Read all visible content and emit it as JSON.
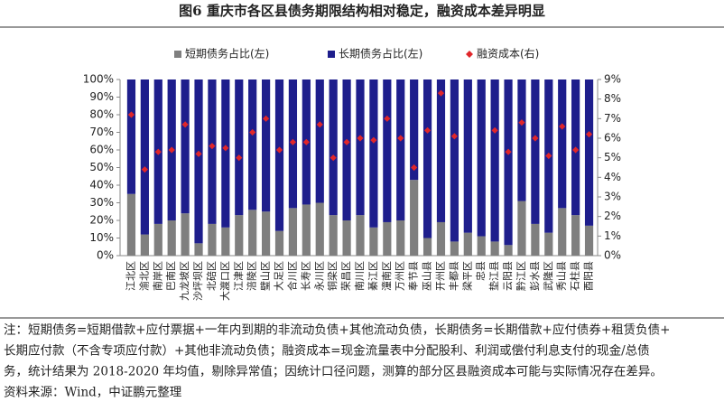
{
  "chart_data": {
    "type": "stacked-bar-scatter",
    "title": "图6 重庆市各区县债务期限结构相对稳定，融资成本差异明显",
    "categories": [
      "江北区",
      "渝北区",
      "南岸区",
      "巴南区",
      "九龙坡区",
      "沙坪坝区",
      "北碚区",
      "大渡口区",
      "江津区",
      "涪陵区",
      "璧山区",
      "大足区",
      "合川区",
      "长寿区",
      "永川区",
      "铜梁区",
      "荣昌区",
      "南川区",
      "綦江区",
      "潼南区",
      "万州区",
      "奉节县",
      "巫山县",
      "开州区",
      "丰都县",
      "梁平区",
      "忠县",
      "垫江县",
      "云阳县",
      "黔江区",
      "彭水县",
      "武隆区",
      "秀山县",
      "石柱县",
      "酉阳县"
    ],
    "series": [
      {
        "name": "短期债务占比(左)",
        "color": "#7f7f7f",
        "values": [
          35,
          12,
          18,
          20,
          24,
          7,
          18,
          16,
          23,
          26,
          25,
          14,
          27,
          29,
          30,
          23,
          20,
          23,
          16,
          19,
          20,
          43,
          10,
          19,
          8,
          13,
          11,
          8,
          6,
          31,
          18,
          13,
          27,
          23,
          17
        ]
      },
      {
        "name": "长期债务占比(左)",
        "color": "#1e1e8c",
        "values": [
          65,
          88,
          82,
          80,
          76,
          93,
          82,
          84,
          77,
          74,
          75,
          86,
          73,
          71,
          70,
          77,
          80,
          77,
          84,
          81,
          80,
          57,
          90,
          81,
          92,
          87,
          89,
          92,
          94,
          69,
          82,
          87,
          73,
          77,
          83
        ]
      },
      {
        "name": "融资成本(右)",
        "color": "#e0262a",
        "axis": "y2",
        "values": [
          7.2,
          4.4,
          5.3,
          5.4,
          6.7,
          5.2,
          5.6,
          5.5,
          5.0,
          6.3,
          7.0,
          5.4,
          5.8,
          5.8,
          6.7,
          5.0,
          5.8,
          6.0,
          5.9,
          7.0,
          6.0,
          4.5,
          6.4,
          8.3,
          6.1,
          null,
          null,
          6.4,
          5.3,
          6.8,
          6.0,
          5.1,
          6.6,
          5.4,
          6.2
        ]
      }
    ],
    "ylim": [
      0,
      100
    ],
    "yticks": [
      {
        "value": 0,
        "label": "0%"
      },
      {
        "value": 10,
        "label": "10%"
      },
      {
        "value": 20,
        "label": "20%"
      },
      {
        "value": 30,
        "label": "30%"
      },
      {
        "value": 40,
        "label": "40%"
      },
      {
        "value": 50,
        "label": "50%"
      },
      {
        "value": 60,
        "label": "60%"
      },
      {
        "value": 70,
        "label": "70%"
      },
      {
        "value": 80,
        "label": "80%"
      },
      {
        "value": 90,
        "label": "90%"
      },
      {
        "value": 100,
        "label": "100%"
      }
    ],
    "y2lim": [
      0,
      9
    ],
    "y2ticks": [
      {
        "value": 0,
        "label": "0%"
      },
      {
        "value": 1,
        "label": "1%"
      },
      {
        "value": 2,
        "label": "2%"
      },
      {
        "value": 3,
        "label": "3%"
      },
      {
        "value": 4,
        "label": "4%"
      },
      {
        "value": 5,
        "label": "5%"
      },
      {
        "value": 6,
        "label": "6%"
      },
      {
        "value": 7,
        "label": "7%"
      },
      {
        "value": 8,
        "label": "8%"
      },
      {
        "value": 9,
        "label": "9%"
      }
    ],
    "notes": [
      "注：短期债务=短期借款+应付票据+一年内到期的非流动负债+其他流动负债，长期债务=长期借款+应付债券+租赁负债+",
      "长期应付款（不含专项应付款）+其他非流动负债；融资成本=现金流量表中分配股利、利润或偿付利息支付的现金/总债",
      "务，统计结果为 2018-2020 年均值，剔除异常值；因统计口径问题，测算的部分区县融资成本可能与实际情况存在差异。",
      "资料来源：Wind，中证鹏元整理"
    ]
  }
}
